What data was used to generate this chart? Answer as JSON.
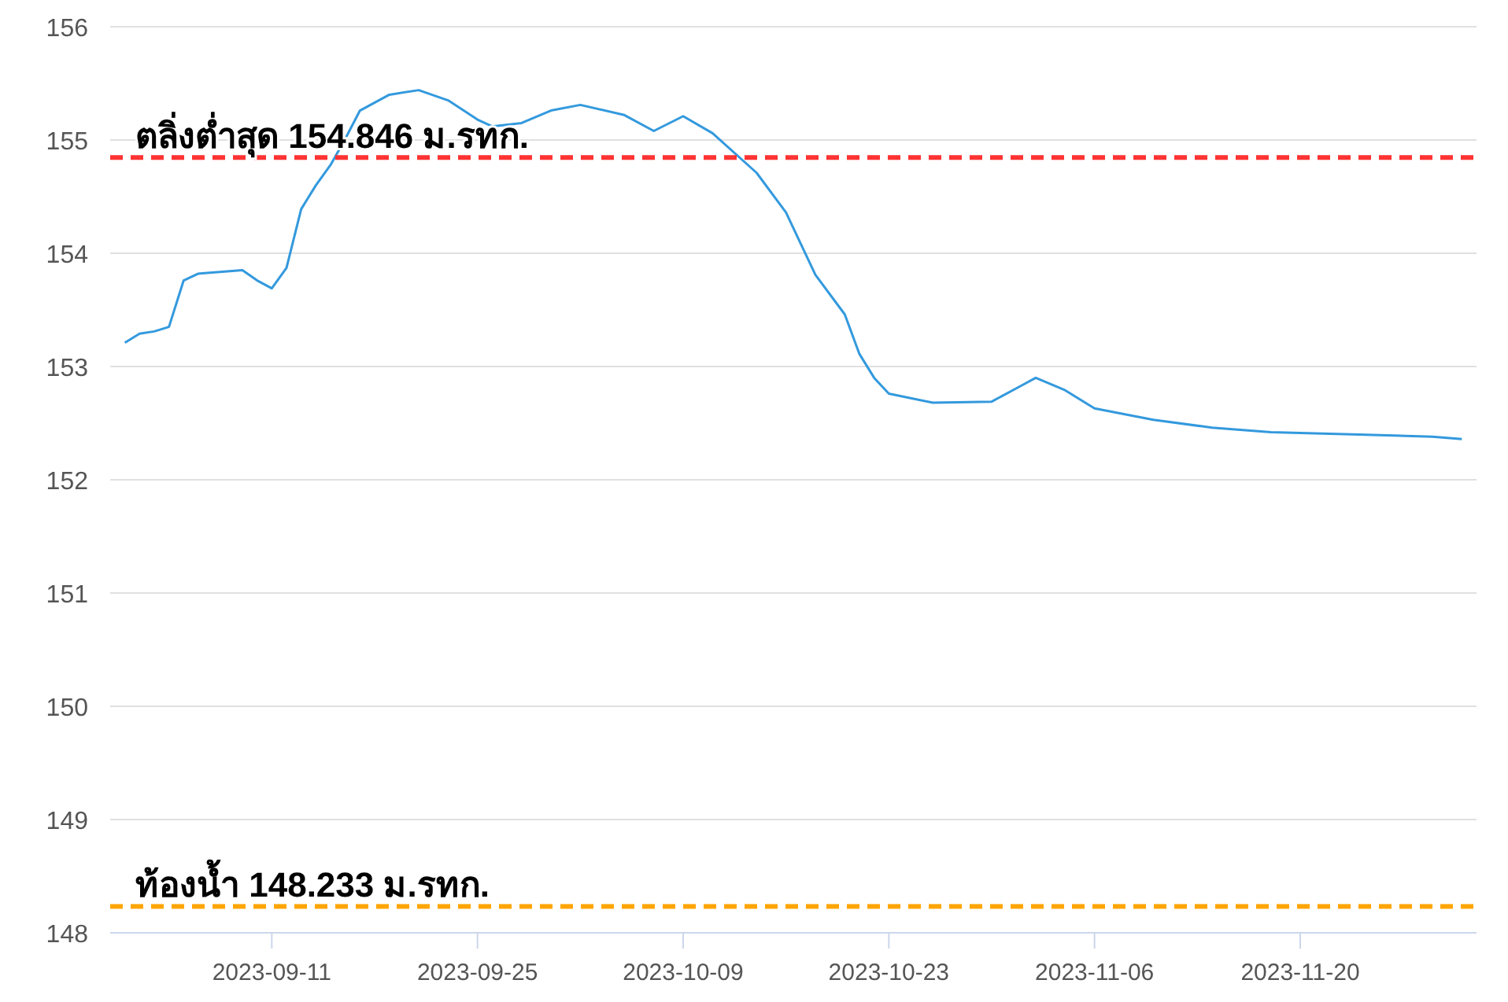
{
  "chart_data": {
    "type": "line",
    "x": [
      "2023-09-01",
      "2023-09-02",
      "2023-09-03",
      "2023-09-04",
      "2023-09-05",
      "2023-09-06",
      "2023-09-09",
      "2023-09-10",
      "2023-09-11",
      "2023-09-12",
      "2023-09-13",
      "2023-09-14",
      "2023-09-15",
      "2023-09-16",
      "2023-09-17",
      "2023-09-19",
      "2023-09-21",
      "2023-09-23",
      "2023-09-25",
      "2023-09-26",
      "2023-09-28",
      "2023-09-30",
      "2023-10-02",
      "2023-10-05",
      "2023-10-07",
      "2023-10-09",
      "2023-10-11",
      "2023-10-14",
      "2023-10-16",
      "2023-10-18",
      "2023-10-20",
      "2023-10-21",
      "2023-10-22",
      "2023-10-23",
      "2023-10-26",
      "2023-10-30",
      "2023-11-01",
      "2023-11-02",
      "2023-11-04",
      "2023-11-06",
      "2023-11-10",
      "2023-11-14",
      "2023-11-18",
      "2023-11-24",
      "2023-11-29",
      "2023-12-01"
    ],
    "series": [
      {
        "color": "#3399dd",
        "values": [
          153.21,
          153.29,
          153.31,
          153.35,
          153.76,
          153.82,
          153.85,
          153.76,
          153.69,
          153.87,
          154.39,
          154.6,
          154.78,
          155.01,
          155.26,
          155.4,
          155.44,
          155.35,
          155.18,
          155.12,
          155.15,
          155.26,
          155.31,
          155.22,
          155.08,
          155.21,
          155.06,
          154.71,
          154.36,
          153.81,
          153.46,
          153.11,
          152.9,
          152.76,
          152.68,
          152.69,
          152.83,
          152.9,
          152.79,
          152.63,
          152.53,
          152.46,
          152.42,
          152.4,
          152.38,
          152.36
        ]
      }
    ],
    "xlim": [
      "2023-08-31",
      "2023-12-02"
    ],
    "xticks": [
      "2023-09-11",
      "2023-09-25",
      "2023-10-09",
      "2023-10-23",
      "2023-11-06",
      "2023-11-20"
    ],
    "ylim": [
      148,
      156
    ],
    "yticks": [
      148,
      149,
      150,
      151,
      152,
      153,
      154,
      155,
      156
    ],
    "grid": "y",
    "marker": "none",
    "line_style": "solid",
    "ref_lines": [
      {
        "axis": "y",
        "value": 154.846,
        "label": "ตลิ่งต่ำสุด 154.846 ม.รทก.",
        "color": "#ff3333",
        "line_style": "dashed"
      },
      {
        "axis": "y",
        "value": 148.233,
        "label": "ท้องน้ำ 148.233 ม.รทก.",
        "color": "#ffa500",
        "line_style": "dashed"
      }
    ]
  }
}
